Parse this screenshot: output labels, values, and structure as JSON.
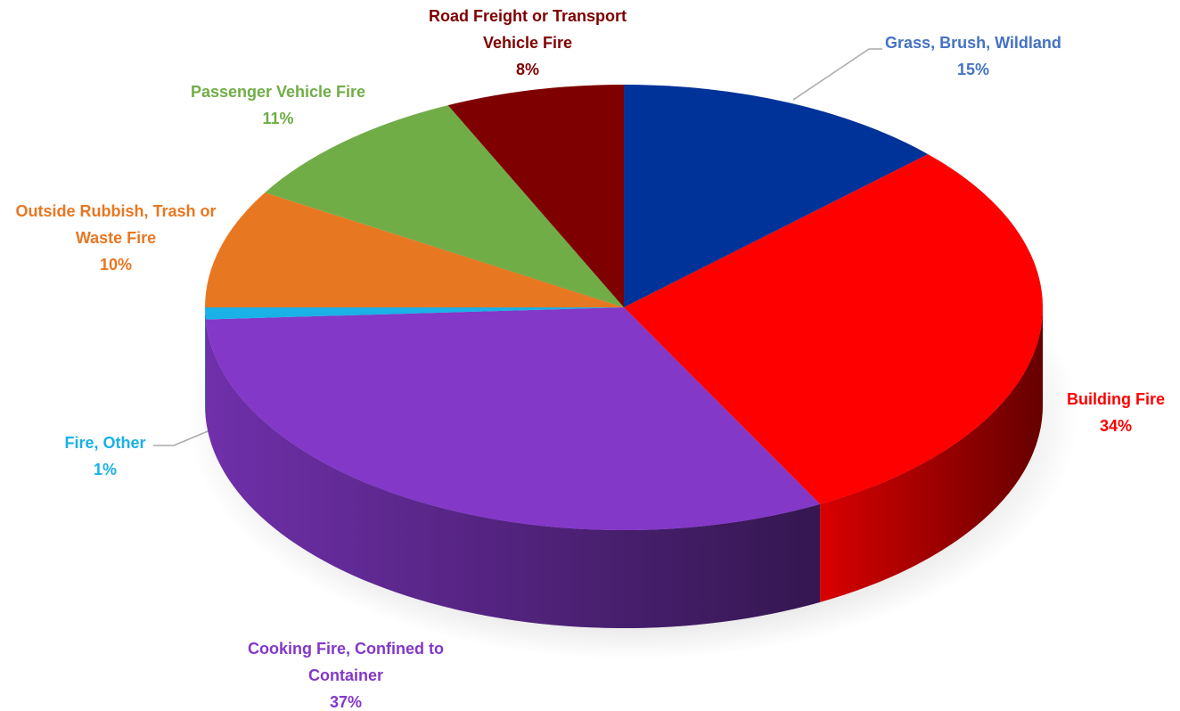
{
  "chart_data": {
    "type": "pie3d",
    "categories": [
      "Grass, Brush, Wildland",
      "Building Fire",
      "Cooking Fire, Confined to Container",
      "Fire, Other",
      "Outside Rubbish, Trash or Waste Fire",
      "Passenger Vehicle Fire",
      "Road Freight or Transport Vehicle Fire"
    ],
    "values": [
      15,
      34,
      37,
      1,
      10,
      11,
      8
    ],
    "value_labels": [
      "15%",
      "34%",
      "37%",
      "1%",
      "10%",
      "11%",
      "8%"
    ],
    "colors": [
      "#003399",
      "#ff0000",
      "#8338c8",
      "#1ab0e8",
      "#e87722",
      "#70ad47",
      "#7f0000"
    ],
    "label_colors": [
      "#4472c4",
      "#ff0000",
      "#8338c8",
      "#1ab0e8",
      "#e87722",
      "#70ad47",
      "#7f0000"
    ]
  }
}
